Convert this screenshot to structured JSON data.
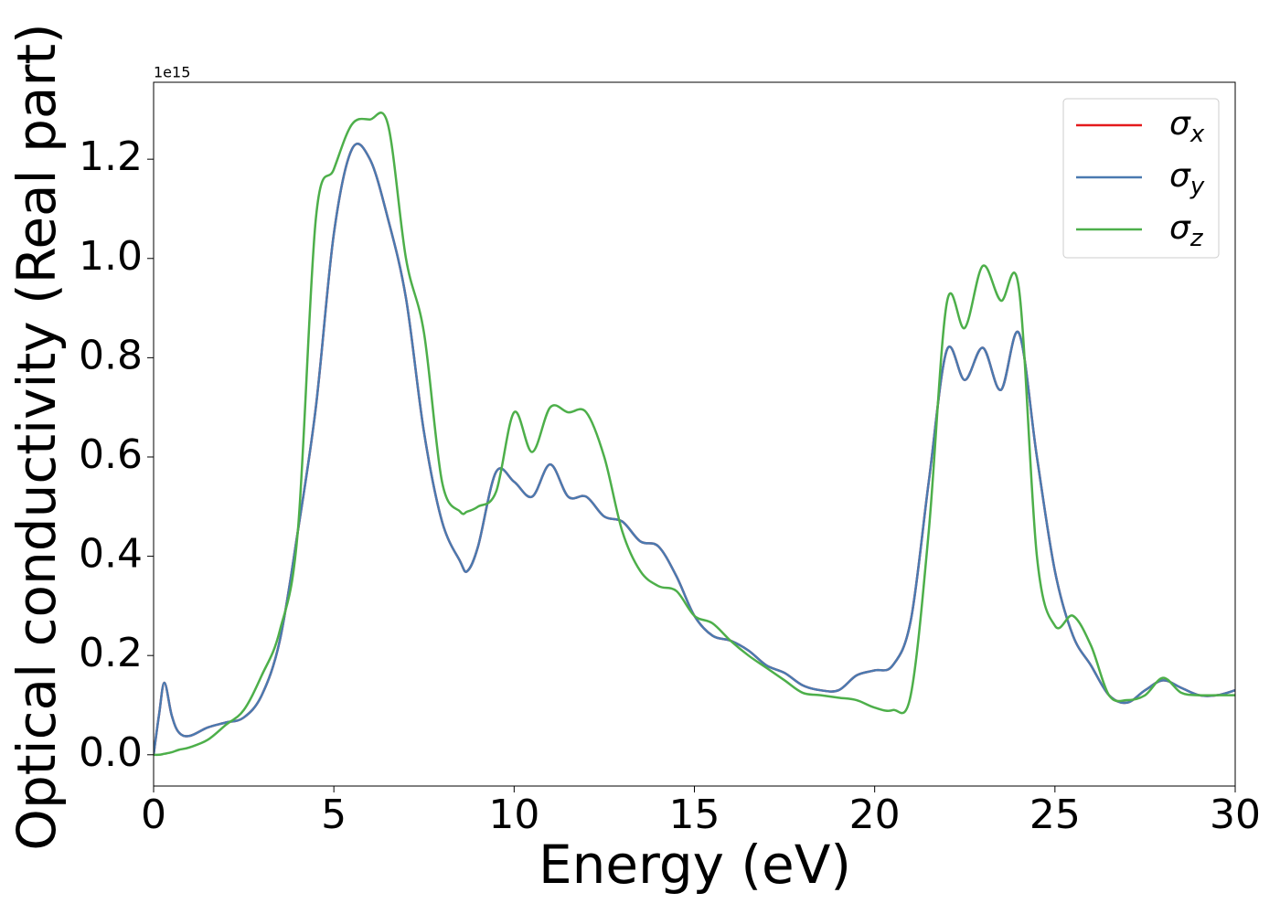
{
  "chart_data": {
    "type": "line",
    "xlabel": "Energy (eV)",
    "ylabel": "Optical conductivity (Real part)",
    "y_offset_label": "1e15",
    "x": [
      0,
      0.15,
      0.3,
      0.5,
      0.7,
      1.0,
      1.5,
      2.0,
      2.5,
      3.0,
      3.5,
      4.0,
      4.5,
      5.0,
      5.5,
      6.0,
      6.5,
      7.0,
      7.5,
      8.0,
      8.5,
      8.7,
      9.0,
      9.5,
      10.0,
      10.5,
      11.0,
      11.5,
      12.0,
      12.5,
      13.0,
      13.5,
      14.0,
      14.5,
      15.0,
      15.5,
      16.0,
      16.5,
      17.0,
      17.5,
      18.0,
      18.5,
      19.0,
      19.5,
      20.0,
      20.5,
      21.0,
      21.5,
      22.0,
      22.5,
      23.0,
      23.5,
      24.0,
      24.5,
      25.0,
      25.5,
      26.0,
      26.5,
      27.0,
      27.5,
      28.0,
      28.5,
      29.0,
      29.5,
      30.0
    ],
    "series": [
      {
        "name": "σx",
        "color": "#e41a1c",
        "values": [
          0,
          0.08,
          0.145,
          0.08,
          0.045,
          0.038,
          0.055,
          0.065,
          0.075,
          0.12,
          0.23,
          0.45,
          0.7,
          1.05,
          1.22,
          1.2,
          1.08,
          0.92,
          0.65,
          0.47,
          0.39,
          0.37,
          0.42,
          0.57,
          0.55,
          0.52,
          0.585,
          0.52,
          0.52,
          0.48,
          0.47,
          0.43,
          0.42,
          0.36,
          0.28,
          0.24,
          0.23,
          0.21,
          0.18,
          0.165,
          0.14,
          0.13,
          0.13,
          0.16,
          0.17,
          0.18,
          0.27,
          0.55,
          0.815,
          0.755,
          0.82,
          0.735,
          0.85,
          0.6,
          0.37,
          0.24,
          0.18,
          0.12,
          0.105,
          0.13,
          0.15,
          0.135,
          0.12,
          0.12,
          0.13
        ]
      },
      {
        "name": "σy",
        "color": "#4a7ab0",
        "values": [
          0,
          0.08,
          0.145,
          0.08,
          0.045,
          0.038,
          0.055,
          0.065,
          0.075,
          0.12,
          0.23,
          0.45,
          0.7,
          1.05,
          1.22,
          1.2,
          1.08,
          0.92,
          0.65,
          0.47,
          0.39,
          0.37,
          0.42,
          0.57,
          0.55,
          0.52,
          0.585,
          0.52,
          0.52,
          0.48,
          0.47,
          0.43,
          0.42,
          0.36,
          0.28,
          0.24,
          0.23,
          0.21,
          0.18,
          0.165,
          0.14,
          0.13,
          0.13,
          0.16,
          0.17,
          0.18,
          0.27,
          0.55,
          0.815,
          0.755,
          0.82,
          0.735,
          0.85,
          0.6,
          0.37,
          0.24,
          0.18,
          0.12,
          0.105,
          0.13,
          0.15,
          0.135,
          0.12,
          0.12,
          0.13
        ]
      },
      {
        "name": "σz",
        "color": "#4daf4a",
        "values": [
          0,
          0,
          0.002,
          0.005,
          0.01,
          0.015,
          0.03,
          0.06,
          0.09,
          0.16,
          0.25,
          0.45,
          1.08,
          1.18,
          1.27,
          1.28,
          1.27,
          1.0,
          0.85,
          0.55,
          0.49,
          0.49,
          0.5,
          0.53,
          0.69,
          0.61,
          0.7,
          0.69,
          0.69,
          0.6,
          0.45,
          0.37,
          0.34,
          0.33,
          0.28,
          0.265,
          0.23,
          0.2,
          0.175,
          0.15,
          0.125,
          0.12,
          0.115,
          0.11,
          0.095,
          0.09,
          0.12,
          0.45,
          0.91,
          0.86,
          0.985,
          0.915,
          0.94,
          0.4,
          0.26,
          0.28,
          0.22,
          0.12,
          0.11,
          0.12,
          0.155,
          0.125,
          0.12,
          0.12,
          0.12
        ]
      }
    ],
    "xlim": [
      0,
      30
    ],
    "xticks": [
      0,
      5,
      10,
      15,
      20,
      25,
      30
    ],
    "ylim": [
      -0.063,
      1.355
    ],
    "yticks": [
      {
        "value": 0,
        "label": "0.0"
      },
      0.2,
      0.4,
      0.6,
      0.8,
      {
        "value": 1,
        "label": "1.0"
      },
      1.2
    ],
    "grid": false,
    "legend": "upper right"
  }
}
